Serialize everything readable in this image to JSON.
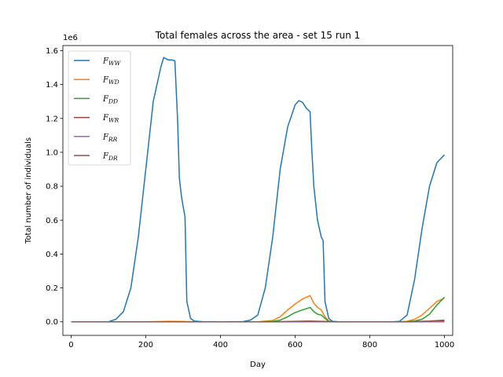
{
  "chart_data": {
    "type": "line",
    "title": "Total females across the area - set 15 run 1",
    "xlabel": "Day",
    "ylabel": "Total number of individuals",
    "y_offset_label": "1e6",
    "xlim": [
      -22,
      1022
    ],
    "ylim": [
      -80000,
      1630000
    ],
    "x_ticks": [
      0,
      200,
      400,
      600,
      800,
      1000
    ],
    "x_tick_labels": [
      "0",
      "200",
      "400",
      "600",
      "800",
      "1000"
    ],
    "y_ticks": [
      0,
      200000,
      400000,
      600000,
      800000,
      1000000,
      1200000,
      1400000,
      1600000
    ],
    "y_tick_labels": [
      "0.0",
      "0.2",
      "0.4",
      "0.6",
      "0.8",
      "1.0",
      "1.2",
      "1.4",
      "1.6"
    ],
    "grid": false,
    "legend_position": "top-left",
    "series": [
      {
        "name": "F_WW",
        "label_main": "F",
        "label_sub": "WW",
        "color": "#1f77b4",
        "x": [
          0,
          100,
          120,
          140,
          160,
          180,
          200,
          220,
          240,
          248,
          260,
          270,
          278,
          285,
          290,
          295,
          300,
          305,
          310,
          320,
          330,
          350,
          400,
          460,
          480,
          500,
          520,
          540,
          560,
          580,
          600,
          610,
          620,
          630,
          640,
          645,
          650,
          660,
          670,
          675,
          680,
          690,
          700,
          720,
          800,
          860,
          880,
          900,
          920,
          940,
          960,
          980,
          1000
        ],
        "y": [
          0,
          0,
          15000,
          60000,
          200000,
          500000,
          900000,
          1300000,
          1500000,
          1560000,
          1545000,
          1545000,
          1540000,
          1200000,
          850000,
          750000,
          680000,
          620000,
          120000,
          20000,
          5000,
          1000,
          0,
          1000,
          10000,
          40000,
          200000,
          500000,
          900000,
          1150000,
          1280000,
          1305000,
          1295000,
          1260000,
          1240000,
          1000000,
          800000,
          600000,
          500000,
          480000,
          120000,
          20000,
          3000,
          0,
          0,
          0,
          3000,
          40000,
          250000,
          550000,
          800000,
          940000,
          985000
        ]
      },
      {
        "name": "F_WD",
        "label_main": "F",
        "label_sub": "WD",
        "color": "#ff7f0e",
        "x": [
          0,
          200,
          260,
          300,
          330,
          400,
          500,
          540,
          560,
          580,
          600,
          620,
          640,
          650,
          660,
          670,
          680,
          690,
          700,
          800,
          880,
          900,
          920,
          940,
          960,
          980,
          1000
        ],
        "y": [
          0,
          0,
          3000,
          2000,
          0,
          0,
          0,
          8000,
          30000,
          70000,
          105000,
          135000,
          155000,
          110000,
          85000,
          70000,
          30000,
          5000,
          0,
          0,
          0,
          3000,
          15000,
          40000,
          80000,
          120000,
          140000
        ]
      },
      {
        "name": "F_DD",
        "label_main": "F",
        "label_sub": "DD",
        "color": "#2ca02c",
        "x": [
          0,
          500,
          540,
          560,
          580,
          600,
          620,
          640,
          650,
          660,
          670,
          680,
          690,
          700,
          800,
          880,
          900,
          920,
          940,
          960,
          980,
          1000
        ],
        "y": [
          0,
          0,
          2000,
          10000,
          30000,
          55000,
          70000,
          85000,
          60000,
          45000,
          40000,
          20000,
          3000,
          0,
          0,
          0,
          1000,
          5000,
          15000,
          45000,
          100000,
          145000
        ]
      },
      {
        "name": "F_WR",
        "label_main": "F",
        "label_sub": "WR",
        "color": "#d62728",
        "x": [
          0,
          550,
          600,
          640,
          680,
          700,
          900,
          1000
        ],
        "y": [
          0,
          0,
          2000,
          3000,
          1000,
          0,
          0,
          3000
        ]
      },
      {
        "name": "F_RR",
        "label_main": "F",
        "label_sub": "RR",
        "color": "#9467bd",
        "x": [
          0,
          1000
        ],
        "y": [
          0,
          0
        ]
      },
      {
        "name": "F_DR",
        "label_main": "F",
        "label_sub": "DR",
        "color": "#8c564b",
        "x": [
          0,
          550,
          600,
          640,
          680,
          700,
          900,
          960,
          1000
        ],
        "y": [
          0,
          0,
          3000,
          5000,
          2000,
          0,
          0,
          5000,
          10000
        ]
      }
    ]
  }
}
